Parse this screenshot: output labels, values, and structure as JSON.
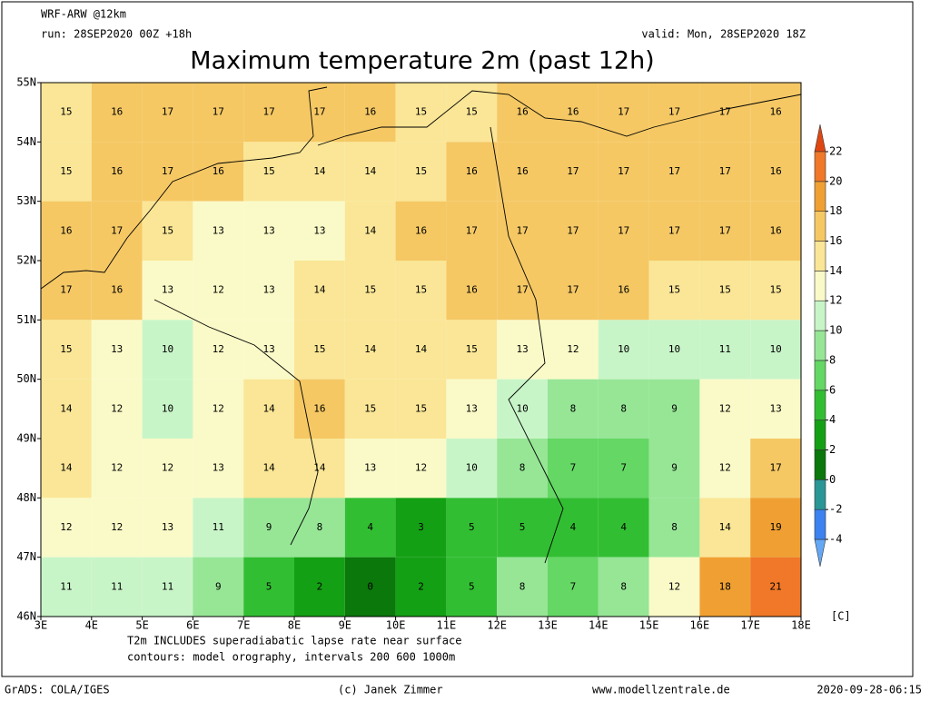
{
  "header": {
    "model": "WRF-ARW @12km",
    "run": "run: 28SEP2020 00Z +18h",
    "valid": "valid: Mon, 28SEP2020 18Z",
    "title": "Maximum temperature 2m (past 12h)"
  },
  "map": {
    "lonlim": [
      3,
      18
    ],
    "latlim": [
      46,
      55
    ],
    "lonticks": [
      {
        "value": 3,
        "label": "3E"
      },
      {
        "value": 4,
        "label": "4E"
      },
      {
        "value": 5,
        "label": "5E"
      },
      {
        "value": 6,
        "label": "6E"
      },
      {
        "value": 7,
        "label": "7E"
      },
      {
        "value": 8,
        "label": "8E"
      },
      {
        "value": 9,
        "label": "9E"
      },
      {
        "value": 10,
        "label": "10E"
      },
      {
        "value": 11,
        "label": "11E"
      },
      {
        "value": 12,
        "label": "12E"
      },
      {
        "value": 13,
        "label": "13E"
      },
      {
        "value": 14,
        "label": "14E"
      },
      {
        "value": 15,
        "label": "15E"
      },
      {
        "value": 16,
        "label": "16E"
      },
      {
        "value": 17,
        "label": "17E"
      },
      {
        "value": 18,
        "label": "18E"
      }
    ],
    "latticks": [
      {
        "value": 46,
        "label": "46N"
      },
      {
        "value": 47,
        "label": "47N"
      },
      {
        "value": 48,
        "label": "48N"
      },
      {
        "value": 49,
        "label": "49N"
      },
      {
        "value": 50,
        "label": "50N"
      },
      {
        "value": 51,
        "label": "51N"
      },
      {
        "value": 52,
        "label": "52N"
      },
      {
        "value": 53,
        "label": "53N"
      },
      {
        "value": 54,
        "label": "54N"
      },
      {
        "value": 55,
        "label": "55N"
      }
    ],
    "lon": [
      3.5,
      4.5,
      5.5,
      6.5,
      7.5,
      8.5,
      9.5,
      10.5,
      11.5,
      12.5,
      13.5,
      14.5,
      15.5,
      16.5,
      17.5
    ],
    "lat": [
      54.5,
      53.5,
      52.5,
      51.5,
      50.5,
      49.5,
      48.5,
      47.5,
      46.5
    ],
    "values": [
      [
        15,
        16,
        17,
        17,
        17,
        17,
        16,
        15,
        15,
        16,
        16,
        17,
        17,
        17,
        16
      ],
      [
        15,
        16,
        17,
        16,
        15,
        14,
        14,
        15,
        16,
        16,
        17,
        17,
        17,
        17,
        16
      ],
      [
        16,
        17,
        15,
        13,
        13,
        13,
        14,
        16,
        17,
        17,
        17,
        17,
        17,
        17,
        16
      ],
      [
        17,
        16,
        13,
        12,
        13,
        14,
        15,
        15,
        16,
        17,
        17,
        16,
        15,
        15,
        15
      ],
      [
        15,
        13,
        10,
        12,
        13,
        15,
        14,
        14,
        15,
        13,
        12,
        10,
        10,
        11,
        10
      ],
      [
        14,
        12,
        10,
        12,
        14,
        16,
        15,
        15,
        13,
        10,
        8,
        8,
        9,
        12,
        13
      ],
      [
        14,
        12,
        12,
        13,
        14,
        14,
        13,
        12,
        10,
        8,
        7,
        7,
        9,
        12,
        17
      ],
      [
        12,
        12,
        13,
        11,
        9,
        8,
        4,
        3,
        5,
        5,
        4,
        4,
        8,
        14,
        19
      ],
      [
        11,
        11,
        11,
        9,
        5,
        2,
        0,
        2,
        5,
        8,
        7,
        8,
        12,
        18,
        21
      ]
    ]
  },
  "colorbar": {
    "levels": [
      -4,
      -2,
      0,
      2,
      4,
      6,
      8,
      10,
      12,
      14,
      16,
      18,
      20,
      22
    ],
    "colors": [
      "#64a8f5",
      "#3c82f0",
      "#2a9696",
      "#0a780a",
      "#14a014",
      "#32be32",
      "#64d764",
      "#96e696",
      "#c8f5c8",
      "#fafac8",
      "#fae696",
      "#f5c864",
      "#f0a032",
      "#f07828",
      "#e04612"
    ],
    "unit": "[C]"
  },
  "notes": {
    "line1": "T2m INCLUDES superadiabatic lapse rate near surface",
    "line2": "contours: model orography, intervals 200 600 1000m"
  },
  "footer": {
    "software": "GrADS: COLA/IGES",
    "copyright": "(c) Janek Zimmer",
    "website": "www.modellzentrale.de",
    "timestamp": "2020-09-28-06:15"
  }
}
